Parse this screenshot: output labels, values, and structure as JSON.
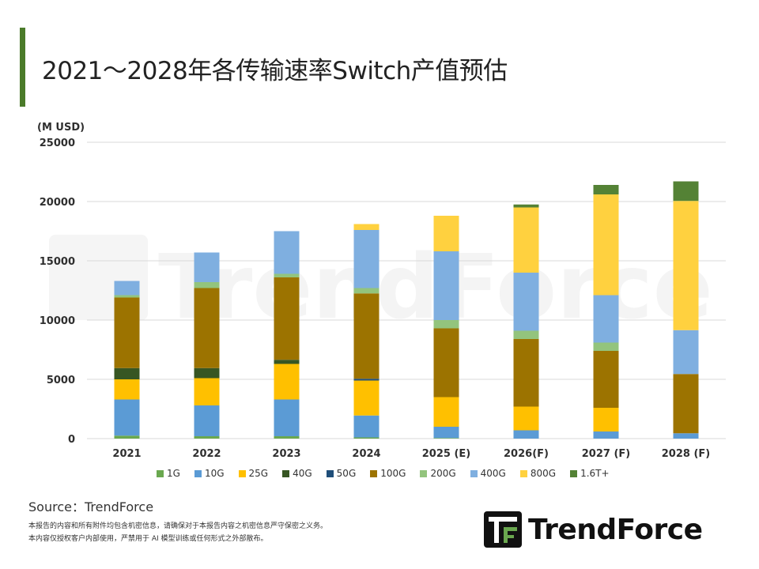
{
  "page": {
    "title": "2021～2028年各传输速率Switch产值预估",
    "source": "Source：TrendForce",
    "disclaimer_line1": "本报告的内容和所有附件均包含机密信息，请确保对于本报告内容之机密信息严守保密之义务。",
    "disclaimer_line2": "本内容仅授权客户内部使用，严禁用于 AI 模型训练或任何形式之外部散布。",
    "logo_text": "TrendForce",
    "watermark_text": "TrendForce",
    "accent_color": "#4b7b2a"
  },
  "chart_data": {
    "type": "bar",
    "stacked": true,
    "unit_label": "(M USD)",
    "categories": [
      "2021",
      "2022",
      "2023",
      "2024",
      "2025 (E)",
      "2026(F)",
      "2027 (F)",
      "2028 (F)"
    ],
    "ylim": [
      0,
      25000
    ],
    "yticks": [
      0,
      5000,
      10000,
      15000,
      20000,
      25000
    ],
    "grid": true,
    "legend_position": "bottom",
    "series": [
      {
        "name": "1G",
        "color": "#6aa84f",
        "values": [
          250,
          200,
          200,
          100,
          50,
          0,
          0,
          0
        ]
      },
      {
        "name": "10G",
        "color": "#5b9bd5",
        "values": [
          3050,
          2600,
          3100,
          1850,
          950,
          700,
          600,
          450
        ]
      },
      {
        "name": "25G",
        "color": "#ffc000",
        "values": [
          1700,
          2300,
          3000,
          2950,
          2500,
          2000,
          2000,
          0
        ]
      },
      {
        "name": "40G",
        "color": "#375623",
        "values": [
          950,
          850,
          350,
          0,
          0,
          0,
          0,
          0
        ]
      },
      {
        "name": "50G",
        "color": "#1f4e79",
        "values": [
          0,
          0,
          0,
          150,
          0,
          0,
          0,
          0
        ]
      },
      {
        "name": "100G",
        "color": "#9c7300",
        "values": [
          5950,
          6750,
          6950,
          7200,
          5800,
          5700,
          4800,
          5000
        ]
      },
      {
        "name": "200G",
        "color": "#93c47d",
        "values": [
          200,
          500,
          300,
          450,
          700,
          700,
          700,
          0
        ]
      },
      {
        "name": "400G",
        "color": "#7fafe0",
        "values": [
          1200,
          2500,
          3600,
          4900,
          5800,
          4900,
          4000,
          3700
        ]
      },
      {
        "name": "800G",
        "color": "#ffd13f",
        "values": [
          0,
          0,
          0,
          500,
          3000,
          5500,
          8500,
          10900
        ]
      },
      {
        "name": "1.6T+",
        "color": "#548235",
        "values": [
          0,
          0,
          0,
          0,
          0,
          250,
          800,
          1650
        ]
      }
    ]
  }
}
